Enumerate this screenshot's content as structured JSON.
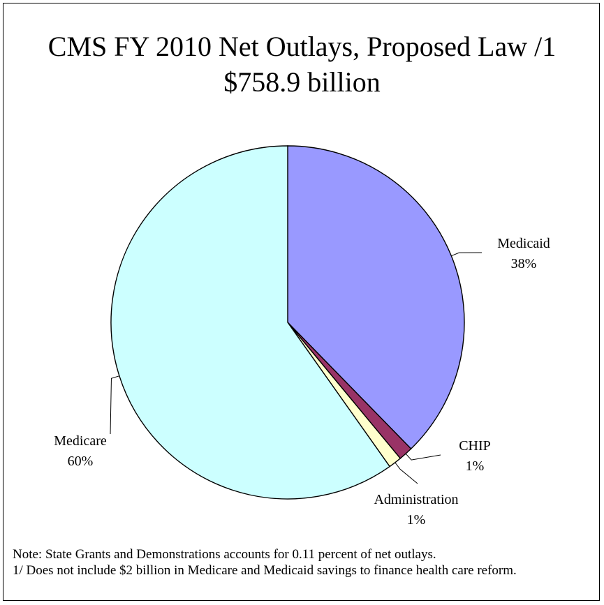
{
  "chart_data": {
    "type": "pie",
    "title": "CMS FY 2010 Net Outlays, Proposed Law /1",
    "subtitle": "$758.9 billion",
    "slices": [
      {
        "name": "Medicaid",
        "label": "38%",
        "value": 37.7,
        "color": "#9999ff"
      },
      {
        "name": "CHIP",
        "label": "1%",
        "value": 1.3,
        "color": "#993366"
      },
      {
        "name": "Administration",
        "label": "1%",
        "value": 1.2,
        "color": "#ffffcc"
      },
      {
        "name": "Medicare",
        "label": "60%",
        "value": 59.8,
        "color": "#ccffff"
      }
    ]
  },
  "notes": {
    "line1": "Note: State Grants and Demonstrations accounts for 0.11 percent of net outlays.",
    "line2": "1/ Does not include $2 billion in Medicare and Medicaid savings to finance health care reform."
  }
}
